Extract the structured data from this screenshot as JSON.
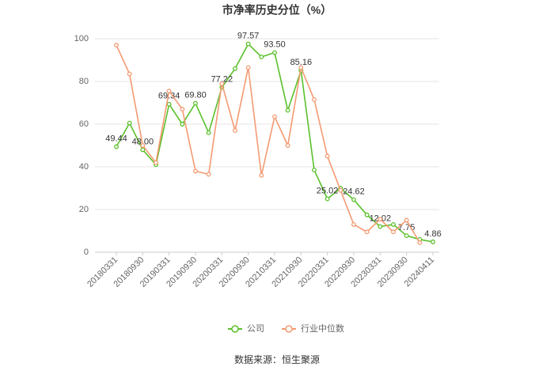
{
  "chart_data": {
    "type": "line",
    "title": "市净率历史分位（%）",
    "categories": [
      "20180331",
      null,
      "20180930",
      null,
      "20190331",
      null,
      "20190930",
      null,
      "20200331",
      null,
      "20200930",
      null,
      "20210331",
      null,
      "20210930",
      null,
      "20220331",
      null,
      "20220930",
      null,
      "20230331",
      null,
      "20230930",
      null,
      "20240411"
    ],
    "series": [
      {
        "name": "公司",
        "color": "#5ac02a",
        "values": [
          49.44,
          60.5,
          48.0,
          41,
          69.34,
          60,
          69.8,
          56,
          77.22,
          86,
          97.57,
          91.5,
          93.5,
          66.5,
          85.16,
          38.5,
          25.02,
          30,
          24.62,
          17.5,
          12.02,
          13,
          7.75,
          6,
          4.86
        ],
        "value_labels": [
          "49.44",
          null,
          "48.00",
          null,
          "69.34",
          null,
          "69.80",
          null,
          "77.22",
          null,
          "97.57",
          null,
          "93.50",
          null,
          "85.16",
          null,
          "25.02",
          null,
          "24.62",
          null,
          "12.02",
          null,
          "7.75",
          null,
          "4.86"
        ]
      },
      {
        "name": "行业中位数",
        "color": "#f49a72",
        "values": [
          97,
          83.5,
          50,
          42,
          75.5,
          67,
          38,
          36.5,
          79,
          57,
          86.5,
          36,
          63.5,
          50,
          86.5,
          71.5,
          45,
          29,
          13,
          9.5,
          15.5,
          9.5,
          15,
          4.5,
          null
        ]
      }
    ],
    "ylim": [
      0,
      100
    ],
    "yticks": [
      0,
      20,
      40,
      60,
      80,
      100
    ],
    "grid": true,
    "source": "数据来源：恒生聚源"
  }
}
